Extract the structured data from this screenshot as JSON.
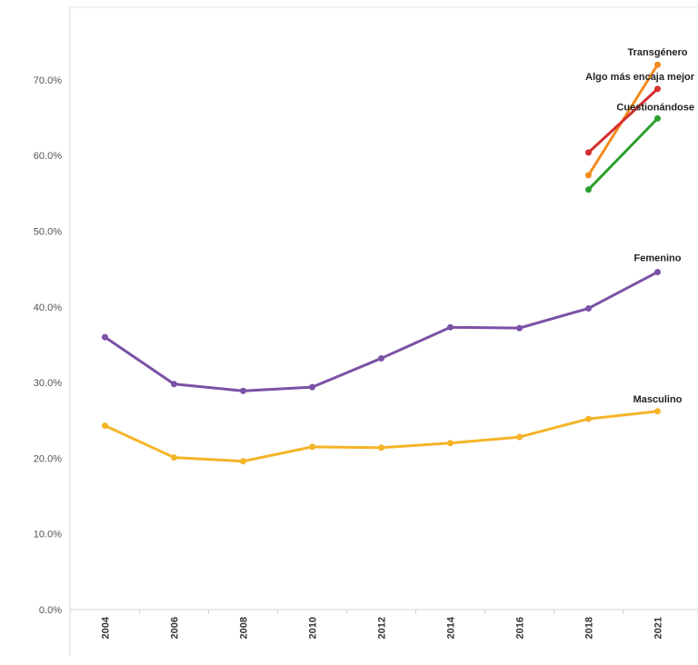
{
  "chart_data": {
    "type": "line",
    "categories": [
      "2004",
      "2006",
      "2008",
      "2010",
      "2012",
      "2014",
      "2016",
      "2018",
      "2021"
    ],
    "y_ticks": [
      "0.0%",
      "10.0%",
      "20.0%",
      "30.0%",
      "40.0%",
      "50.0%",
      "60.0%",
      "70.0%"
    ],
    "y_tick_values": [
      0,
      10,
      20,
      30,
      40,
      50,
      60,
      70
    ],
    "ylim": [
      0,
      80
    ],
    "grid": false,
    "series": [
      {
        "name": "Femenino",
        "color": "#7B52A6",
        "values": [
          36.0,
          29.8,
          28.9,
          29.4,
          33.2,
          37.3,
          37.2,
          39.8,
          44.6
        ]
      },
      {
        "name": "Masculino",
        "color": "#F5B428",
        "values": [
          24.3,
          20.1,
          19.6,
          21.5,
          21.4,
          22.0,
          22.8,
          25.2,
          26.2
        ]
      },
      {
        "name": "Transgénero",
        "color": "#F28C1E",
        "values": [
          null,
          null,
          null,
          null,
          null,
          null,
          null,
          57.4,
          72.0
        ]
      },
      {
        "name": "Algo más encaja mejor",
        "color": "#D62F2F",
        "values": [
          null,
          null,
          null,
          null,
          null,
          null,
          null,
          60.4,
          68.8
        ]
      },
      {
        "name": "Cuestionándose",
        "color": "#2CA02C",
        "values": [
          null,
          null,
          null,
          null,
          null,
          null,
          null,
          55.5,
          64.9
        ]
      }
    ]
  }
}
